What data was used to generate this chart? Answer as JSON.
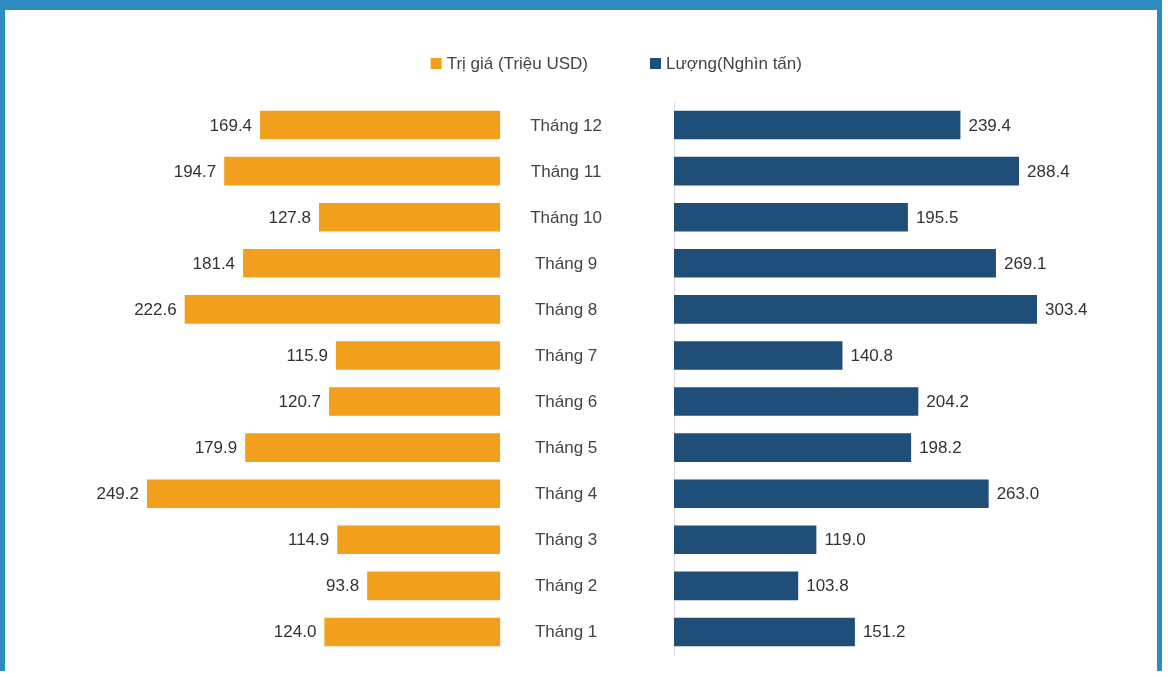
{
  "chart_data": [
    {
      "type": "bar",
      "orientation": "horizontal",
      "categories": [
        "Tháng 12",
        "Tháng 11",
        "Tháng 10",
        "Tháng 9",
        "Tháng 8",
        "Tháng 7",
        "Tháng 6",
        "Tháng 5",
        "Tháng 4",
        "Tháng 3",
        "Tháng 2",
        "Tháng 1"
      ],
      "xlim": [
        249.2,
        0
      ],
      "tick_labels": "y",
      "legend": "top",
      "grid": false,
      "series": [
        {
          "name": "Trị giá (Triệu USD)",
          "color": "#f29f1d",
          "values": [
            169.4,
            194.7,
            127.8,
            181.4,
            222.6,
            115.9,
            120.7,
            179.9,
            249.2,
            114.9,
            93.8,
            124.0
          ],
          "value_labels": [
            "169.4",
            "194.7",
            "127.8",
            "181.4",
            "222.6",
            "115.9",
            "120.7",
            "179.9",
            "249.2",
            "114.9",
            "93.8",
            "124.0"
          ]
        }
      ]
    },
    {
      "type": "bar",
      "orientation": "horizontal",
      "categories": [
        null,
        null,
        null,
        null,
        null,
        null,
        null,
        null,
        null,
        null,
        null,
        null
      ],
      "xlim": [
        0,
        303.4
      ],
      "tick_labels": "y",
      "legend": "top",
      "grid": false,
      "series": [
        {
          "name": "Lượng(Nghìn tấn)",
          "color": "#1f4e79",
          "values": [
            239.4,
            288.4,
            195.5,
            269.1,
            303.4,
            140.8,
            204.2,
            198.2,
            263.0,
            119.0,
            103.8,
            151.2
          ],
          "value_labels": [
            "239.4",
            "288.4",
            "195.5",
            "269.1",
            "303.4",
            "140.8",
            "204.2",
            "198.2",
            "263.0",
            "119.0",
            "103.8",
            "151.2"
          ]
        }
      ]
    }
  ]
}
